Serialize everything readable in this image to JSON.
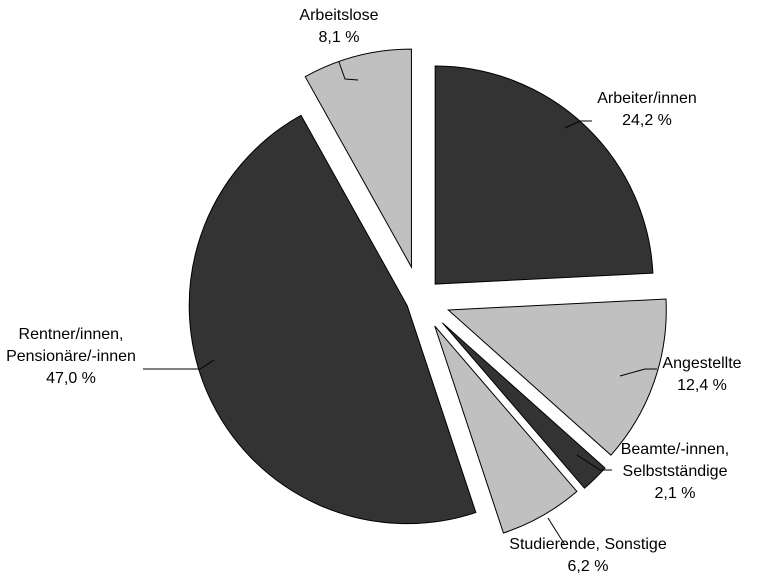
{
  "chart_data": {
    "type": "pie",
    "title": "",
    "exploded": true,
    "slices": [
      {
        "label_lines": [
          "Arbeiter/innen"
        ],
        "value_text": "24,2 %",
        "value": 24.2,
        "color": "#333333"
      },
      {
        "label_lines": [
          "Angestellte"
        ],
        "value_text": "12,4 %",
        "value": 12.4,
        "color": "#c0c0c0"
      },
      {
        "label_lines": [
          "Beamte/-innen,",
          "Selbstständige"
        ],
        "value_text": "2,1 %",
        "value": 2.1,
        "color": "#333333"
      },
      {
        "label_lines": [
          "Studierende, Sonstige"
        ],
        "value_text": "6,2 %",
        "value": 6.2,
        "color": "#c0c0c0"
      },
      {
        "label_lines": [
          "Rentner/innen,",
          "Pensionäre/-innen"
        ],
        "value_text": "47,0 %",
        "value": 47.0,
        "color": "#333333"
      },
      {
        "label_lines": [
          "Arbeitslose"
        ],
        "value_text": "8,1 %",
        "value": 8.1,
        "color": "#c0c0c0"
      }
    ]
  }
}
